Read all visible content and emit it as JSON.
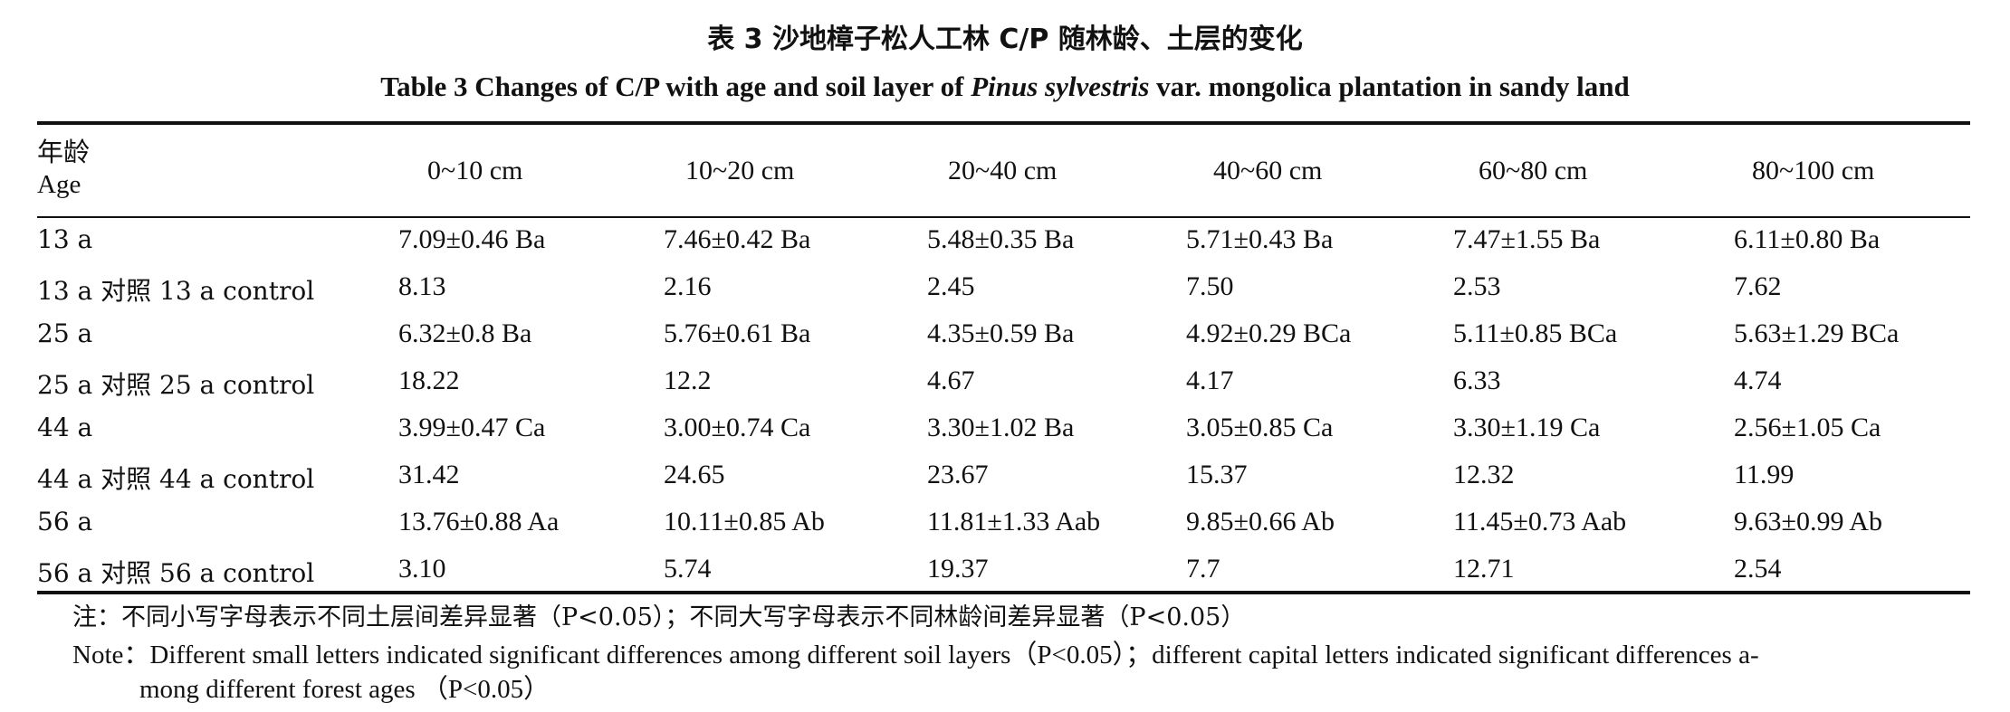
{
  "title": {
    "cn": "表 3   沙地樟子松人工林 C/P 随林龄、土层的变化",
    "en_pre": "Table 3   Changes of C/P with age and soil layer of ",
    "en_italic": "Pinus sylvestris",
    "en_post": " var. mongolica plantation in sandy land"
  },
  "header": {
    "age_cn": "年龄",
    "age_en": "Age",
    "columns": [
      "0~10 cm",
      "10~20 cm",
      "20~40 cm",
      "40~60 cm",
      "60~80 cm",
      "80~100 cm"
    ]
  },
  "rows": [
    {
      "label": "13 a",
      "cells": [
        "7.09±0.46 Ba",
        "7.46±0.42 Ba",
        "5.48±0.35 Ba",
        "5.71±0.43 Ba",
        "7.47±1.55 Ba",
        "6.11±0.80 Ba"
      ]
    },
    {
      "label": "13 a 对照 13 a control",
      "cells": [
        "8.13",
        "2.16",
        "2.45",
        "7.50",
        "2.53",
        "7.62"
      ]
    },
    {
      "label": "25 a",
      "cells": [
        "6.32±0.8 Ba",
        "5.76±0.61 Ba",
        "4.35±0.59 Ba",
        "4.92±0.29 BCa",
        "5.11±0.85 BCa",
        "5.63±1.29 BCa"
      ]
    },
    {
      "label": "25 a 对照 25 a control",
      "cells": [
        "18.22",
        "12.2",
        "4.67",
        "4.17",
        "6.33",
        "4.74"
      ]
    },
    {
      "label": "44 a",
      "cells": [
        "3.99±0.47 Ca",
        "3.00±0.74 Ca",
        "3.30±1.02 Ba",
        "3.05±0.85 Ca",
        "3.30±1.19 Ca",
        "2.56±1.05 Ca"
      ]
    },
    {
      "label": "44 a 对照 44 a control",
      "cells": [
        "31.42",
        "24.65",
        "23.67",
        "15.37",
        "12.32",
        "11.99"
      ]
    },
    {
      "label": "56 a",
      "cells": [
        "13.76±0.88 Aa",
        "10.11±0.85 Ab",
        "11.81±1.33 Aab",
        "9.85±0.66 Ab",
        "11.45±0.73 Aab",
        "9.63±0.99 Ab"
      ]
    },
    {
      "label": "56 a 对照 56 a control",
      "cells": [
        "3.10",
        "5.74",
        "19.37",
        "7.7",
        "12.71",
        "2.54"
      ]
    }
  ],
  "notes": {
    "cn": "注：不同小写字母表示不同土层间差异显著（P<0.05）；不同大写字母表示不同林龄间差异显著（P<0.05）",
    "en_line1": "Note：Different small letters indicated significant differences among different soil layers（P<0.05）；different capital letters indicated significant differences a-",
    "en_line2": "mong different forest ages （P<0.05）"
  }
}
